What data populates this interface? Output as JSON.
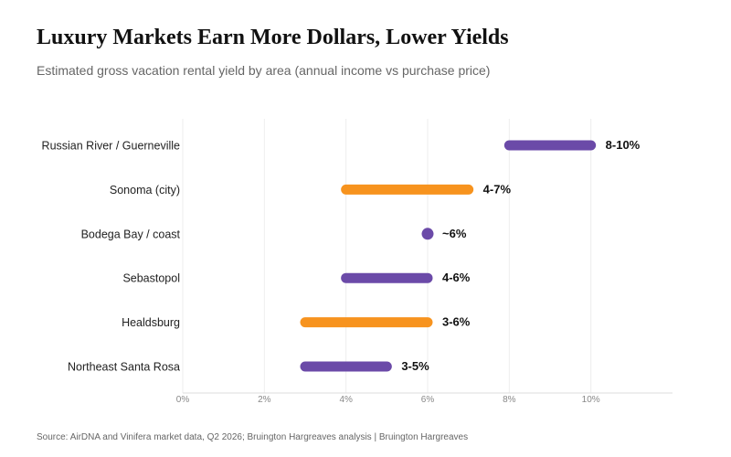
{
  "header": {
    "title": "Luxury Markets Earn More Dollars, Lower Yields",
    "subtitle": "Estimated gross vacation rental yield by area (annual income vs purchase price)"
  },
  "footer": {
    "source": "Source: AirDNA and Vinifera market data, Q2 2026; Bruington Hargreaves analysis  |  Bruington Hargreaves"
  },
  "colors": {
    "purple": "#6b4aa8",
    "orange": "#f7931e",
    "grid": "#eeeeee",
    "axis": "#dddddd"
  },
  "chart_data": {
    "type": "range-bar",
    "title": "Luxury Markets Earn More Dollars, Lower Yields",
    "subtitle": "Estimated gross vacation rental yield by area (annual income vs purchase price)",
    "xlim": [
      0,
      12
    ],
    "x_ticks": [
      0,
      2,
      4,
      6,
      8,
      10
    ],
    "x_tick_labels": [
      "0%",
      "2%",
      "4%",
      "6%",
      "8%",
      "10%"
    ],
    "grid": true,
    "categories": [
      {
        "name": "Russian River / Guerneville",
        "low": 8,
        "high": 10,
        "label": "8-10%",
        "color": "purple"
      },
      {
        "name": "Sonoma (city)",
        "low": 4,
        "high": 7,
        "label": "4-7%",
        "color": "orange"
      },
      {
        "name": "Bodega Bay / coast",
        "low": 6,
        "high": 6,
        "label": "~6%",
        "color": "purple"
      },
      {
        "name": "Sebastopol",
        "low": 4,
        "high": 6,
        "label": "4-6%",
        "color": "purple"
      },
      {
        "name": "Healdsburg",
        "low": 3,
        "high": 6,
        "label": "3-6%",
        "color": "orange"
      },
      {
        "name": "Northeast Santa Rosa",
        "low": 3,
        "high": 5,
        "label": "3-5%",
        "color": "purple"
      }
    ]
  }
}
